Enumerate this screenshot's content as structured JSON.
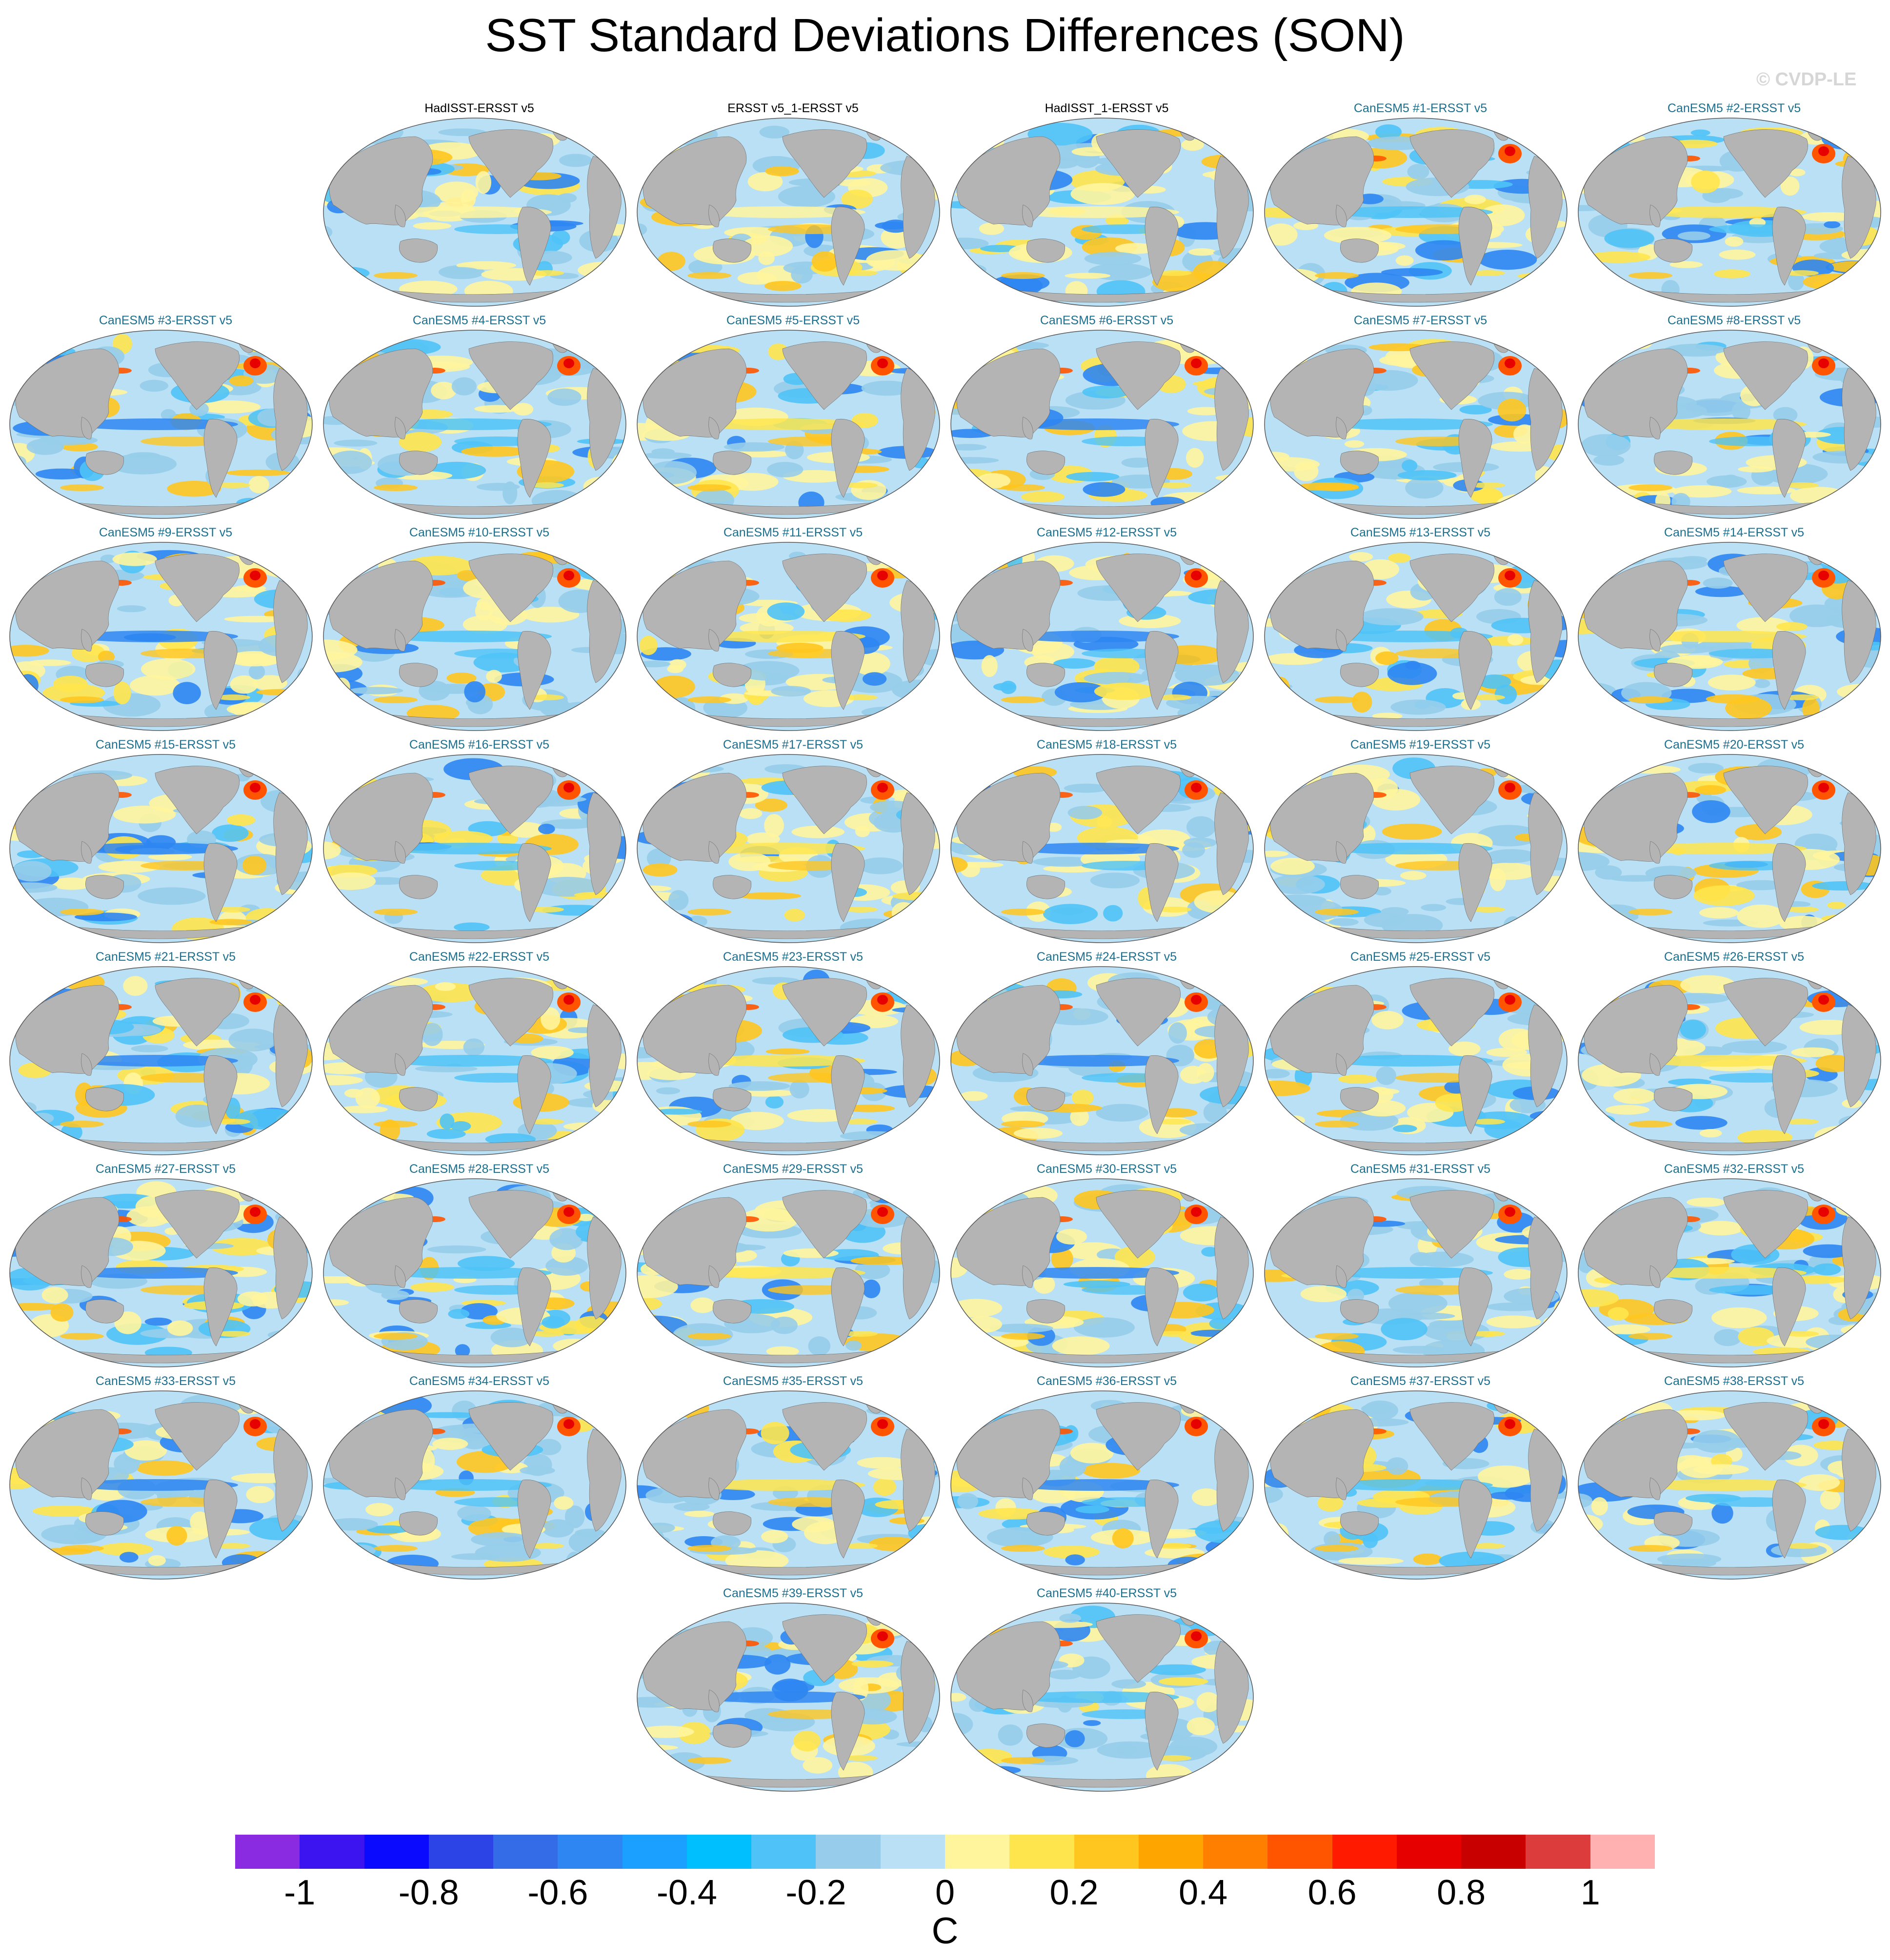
{
  "title": "SST Standard Deviations Differences (SON)",
  "watermark": "© CVDP-LE",
  "units": "C",
  "panels": [
    {
      "label": "HadISST-ERSST v5",
      "kind": "obs"
    },
    {
      "label": "ERSST v5_1-ERSST v5",
      "kind": "obs"
    },
    {
      "label": "HadISST_1-ERSST v5",
      "kind": "obs"
    },
    {
      "label": "CanESM5 #1-ERSST v5",
      "kind": "model"
    },
    {
      "label": "CanESM5 #2-ERSST v5",
      "kind": "model"
    },
    {
      "label": "CanESM5 #3-ERSST v5",
      "kind": "model"
    },
    {
      "label": "CanESM5 #4-ERSST v5",
      "kind": "model"
    },
    {
      "label": "CanESM5 #5-ERSST v5",
      "kind": "model"
    },
    {
      "label": "CanESM5 #6-ERSST v5",
      "kind": "model"
    },
    {
      "label": "CanESM5 #7-ERSST v5",
      "kind": "model"
    },
    {
      "label": "CanESM5 #8-ERSST v5",
      "kind": "model"
    },
    {
      "label": "CanESM5 #9-ERSST v5",
      "kind": "model"
    },
    {
      "label": "CanESM5 #10-ERSST v5",
      "kind": "model"
    },
    {
      "label": "CanESM5 #11-ERSST v5",
      "kind": "model"
    },
    {
      "label": "CanESM5 #12-ERSST v5",
      "kind": "model"
    },
    {
      "label": "CanESM5 #13-ERSST v5",
      "kind": "model"
    },
    {
      "label": "CanESM5 #14-ERSST v5",
      "kind": "model"
    },
    {
      "label": "CanESM5 #15-ERSST v5",
      "kind": "model"
    },
    {
      "label": "CanESM5 #16-ERSST v5",
      "kind": "model"
    },
    {
      "label": "CanESM5 #17-ERSST v5",
      "kind": "model"
    },
    {
      "label": "CanESM5 #18-ERSST v5",
      "kind": "model"
    },
    {
      "label": "CanESM5 #19-ERSST v5",
      "kind": "model"
    },
    {
      "label": "CanESM5 #20-ERSST v5",
      "kind": "model"
    },
    {
      "label": "CanESM5 #21-ERSST v5",
      "kind": "model"
    },
    {
      "label": "CanESM5 #22-ERSST v5",
      "kind": "model"
    },
    {
      "label": "CanESM5 #23-ERSST v5",
      "kind": "model"
    },
    {
      "label": "CanESM5 #24-ERSST v5",
      "kind": "model"
    },
    {
      "label": "CanESM5 #25-ERSST v5",
      "kind": "model"
    },
    {
      "label": "CanESM5 #26-ERSST v5",
      "kind": "model"
    },
    {
      "label": "CanESM5 #27-ERSST v5",
      "kind": "model"
    },
    {
      "label": "CanESM5 #28-ERSST v5",
      "kind": "model"
    },
    {
      "label": "CanESM5 #29-ERSST v5",
      "kind": "model"
    },
    {
      "label": "CanESM5 #30-ERSST v5",
      "kind": "model"
    },
    {
      "label": "CanESM5 #31-ERSST v5",
      "kind": "model"
    },
    {
      "label": "CanESM5 #32-ERSST v5",
      "kind": "model"
    },
    {
      "label": "CanESM5 #33-ERSST v5",
      "kind": "model"
    },
    {
      "label": "CanESM5 #34-ERSST v5",
      "kind": "model"
    },
    {
      "label": "CanESM5 #35-ERSST v5",
      "kind": "model"
    },
    {
      "label": "CanESM5 #36-ERSST v5",
      "kind": "model"
    },
    {
      "label": "CanESM5 #37-ERSST v5",
      "kind": "model"
    },
    {
      "label": "CanESM5 #38-ERSST v5",
      "kind": "model"
    },
    {
      "label": "CanESM5 #39-ERSST v5",
      "kind": "model"
    },
    {
      "label": "CanESM5 #40-ERSST v5",
      "kind": "model"
    }
  ],
  "colorbar": {
    "colors": [
      "#8a2be2",
      "#3b14f0",
      "#0a0aff",
      "#2c44e6",
      "#336ce6",
      "#2e86f2",
      "#1ca0ff",
      "#00bfff",
      "#4fc3f7",
      "#97cdea",
      "#b9e0f5",
      "#fff59d",
      "#ffe54d",
      "#ffc61f",
      "#ffa500",
      "#ff8000",
      "#ff5500",
      "#ff1a00",
      "#e60000",
      "#c80000",
      "#dd3c3c",
      "#ffb0b0"
    ],
    "tick_labels": [
      "-1",
      "-0.8",
      "-0.6",
      "-0.4",
      "-0.2",
      "0",
      "0.2",
      "0.4",
      "0.6",
      "0.8",
      "1"
    ],
    "tick_values": [
      -1,
      -0.8,
      -0.6,
      -0.4,
      -0.2,
      0,
      0.2,
      0.4,
      0.6,
      0.8,
      1
    ],
    "range": [
      -1.1,
      1.1
    ]
  },
  "map_colors": {
    "land": "#b4b4b4",
    "ocean_base": "#b9e0f5",
    "neg_mid": "#97cdea",
    "neg_strong": "#4fc3f7",
    "neg_deep": "#2e86f2",
    "pos_light": "#fff59d",
    "pos_mid": "#ffe54d",
    "pos_strong": "#ffc61f",
    "hot": "#ff5500",
    "hotter": "#e60000",
    "outline": "#555555"
  }
}
